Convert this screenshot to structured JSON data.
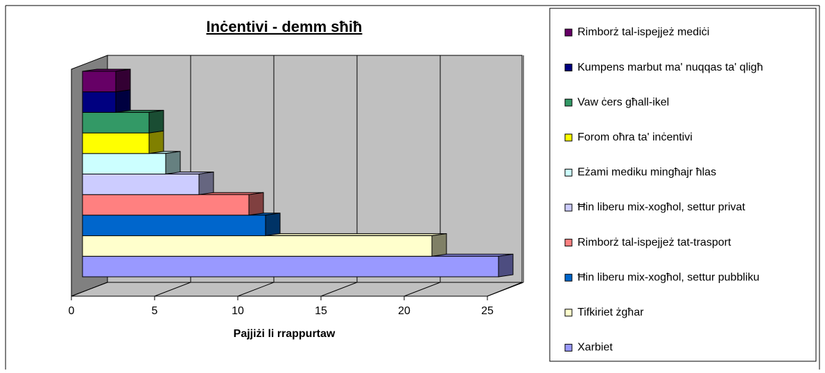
{
  "chart_data": {
    "type": "bar",
    "orientation": "horizontal",
    "title": "Inċentivi - demm sħiħ",
    "xlabel": "Pajjiżi li rrappurtaw",
    "categories": [
      "Xarbiet",
      "Tifkiriet żgħar",
      "Ħin liberu mix-xogħol, settur pubbliku",
      "Rimborż tal-ispejjeż tat-trasport",
      "Ħin liberu mix-xogħol, settur privat",
      "Eżami mediku mingħajr ħlas",
      "Forom oħra ta' inċentivi",
      "Vaw ċers għall-ikel",
      "Kumpens marbut ma' nuqqas ta' qligħ",
      "Rimborż tal-ispejjeż mediċi"
    ],
    "values": [
      25,
      21,
      11,
      10,
      7,
      5,
      4,
      4,
      2,
      2
    ],
    "colors": [
      "#9999ff",
      "#ffffcc",
      "#0066cc",
      "#ff8080",
      "#ccccff",
      "#ccffff",
      "#ffff00",
      "#339966",
      "#000080",
      "#660066"
    ],
    "xlim": [
      0,
      25
    ],
    "xticks": [
      0,
      5,
      10,
      15,
      20,
      25
    ],
    "grid": true,
    "legend": "right"
  }
}
